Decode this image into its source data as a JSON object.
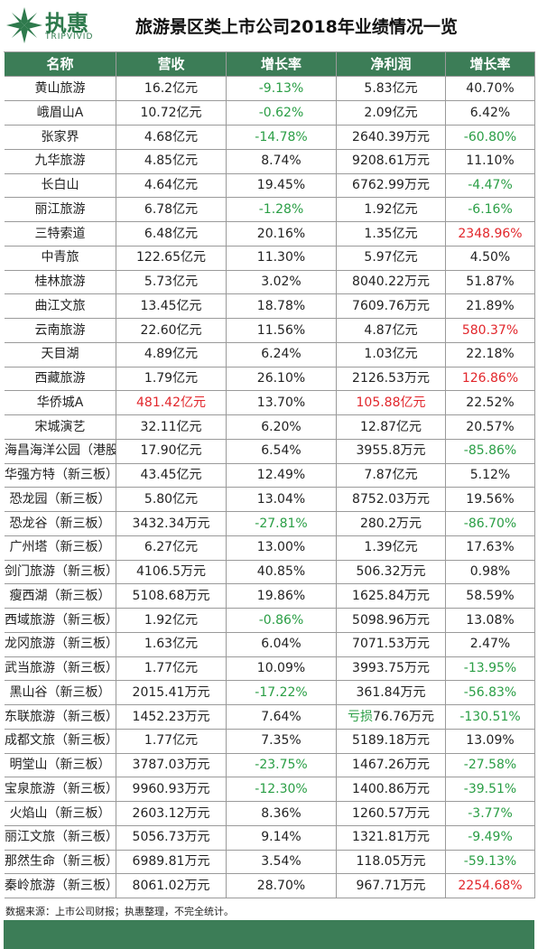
{
  "header": {
    "brand": "执惠",
    "brand_en": "TRIPVIVID",
    "title": "旅游景区类上市公司2018年业绩情况一览"
  },
  "table": {
    "columns": [
      "名称",
      "营收",
      "增长率",
      "净利润",
      "增长率"
    ],
    "rows": [
      [
        "黄山旅游",
        "16.2亿元",
        {
          "text": "-9.13%",
          "color": "#2a9e45"
        },
        "5.83亿元",
        "40.70%"
      ],
      [
        "峨眉山A",
        "10.72亿元",
        {
          "text": "-0.62%",
          "color": "#2a9e45"
        },
        "2.09亿元",
        "6.42%"
      ],
      [
        "张家界",
        "4.68亿元",
        {
          "text": "-14.78%",
          "color": "#2a9e45"
        },
        "2640.39万元",
        {
          "text": "-60.80%",
          "color": "#2a9e45"
        }
      ],
      [
        "九华旅游",
        "4.85亿元",
        "8.74%",
        "9208.61万元",
        "11.10%"
      ],
      [
        "长白山",
        "4.64亿元",
        "19.45%",
        "6762.99万元",
        {
          "text": "-4.47%",
          "color": "#2a9e45"
        }
      ],
      [
        "丽江旅游",
        "6.78亿元",
        {
          "text": "-1.28%",
          "color": "#2a9e45"
        },
        "1.92亿元",
        {
          "text": "-6.16%",
          "color": "#2a9e45"
        }
      ],
      [
        "三特索道",
        "6.48亿元",
        "20.16%",
        "1.35亿元",
        {
          "text": "2348.96%",
          "color": "#e2262b"
        }
      ],
      [
        "中青旅",
        "122.65亿元",
        "11.30%",
        "5.97亿元",
        "4.50%"
      ],
      [
        "桂林旅游",
        "5.73亿元",
        "3.02%",
        "8040.22万元",
        "51.87%"
      ],
      [
        "曲江文旅",
        "13.45亿元",
        "18.78%",
        "7609.76万元",
        "21.89%"
      ],
      [
        "云南旅游",
        "22.60亿元",
        "11.56%",
        "4.87亿元",
        {
          "text": "580.37%",
          "color": "#e2262b"
        }
      ],
      [
        "天目湖",
        "4.89亿元",
        "6.24%",
        "1.03亿元",
        "22.18%"
      ],
      [
        "西藏旅游",
        "1.79亿元",
        "26.10%",
        "2126.53万元",
        {
          "text": "126.86%",
          "color": "#e2262b"
        }
      ],
      [
        "华侨城A",
        {
          "text": "481.42亿元",
          "color": "#e2262b"
        },
        "13.70%",
        {
          "text": "105.88亿元",
          "color": "#e2262b"
        },
        "22.52%"
      ],
      [
        "宋城演艺",
        "32.11亿元",
        "6.20%",
        "12.87亿元",
        "20.57%"
      ],
      [
        "海昌海洋公园（港股）",
        "17.90亿元",
        "6.54%",
        "3955.8万元",
        {
          "text": "-85.86%",
          "color": "#2a9e45"
        }
      ],
      [
        "华强方特（新三板）",
        "43.45亿元",
        "12.49%",
        "7.87亿元",
        "5.12%"
      ],
      [
        "恐龙园（新三板）",
        "5.80亿元",
        "13.04%",
        "8752.03万元",
        "19.56%"
      ],
      [
        "恐龙谷（新三板）",
        "3432.34万元",
        {
          "text": "-27.81%",
          "color": "#2a9e45"
        },
        "280.2万元",
        {
          "text": "-86.70%",
          "color": "#2a9e45"
        }
      ],
      [
        "广州塔（新三板）",
        "6.27亿元",
        "13.00%",
        "1.39亿元",
        "17.63%"
      ],
      [
        "剑门旅游（新三板）",
        "4106.5万元",
        "40.85%",
        "506.32万元",
        "0.98%"
      ],
      [
        "瘦西湖（新三板）",
        "5108.68万元",
        "19.86%",
        "1625.84万元",
        "58.59%"
      ],
      [
        "西域旅游（新三板）",
        "1.92亿元",
        {
          "text": "-0.86%",
          "color": "#2a9e45"
        },
        "5098.96万元",
        "13.08%"
      ],
      [
        "龙冈旅游（新三板）",
        "1.63亿元",
        "6.04%",
        "7071.53万元",
        "2.47%"
      ],
      [
        "武当旅游（新三板）",
        "1.77亿元",
        "10.09%",
        "3993.75万元",
        {
          "text": "-13.95%",
          "color": "#2a9e45"
        }
      ],
      [
        "黑山谷（新三板）",
        "2015.41万元",
        {
          "text": "-17.22%",
          "color": "#2a9e45"
        },
        "361.84万元",
        {
          "text": "-56.83%",
          "color": "#2a9e45"
        }
      ],
      [
        "东联旅游（新三板）",
        "1452.23万元",
        "7.64%",
        {
          "parts": [
            {
              "text": "亏损",
              "color": "#2a9e45"
            },
            {
              "text": "76.76万元"
            }
          ]
        },
        {
          "text": "-130.51%",
          "color": "#2a9e45"
        }
      ],
      [
        "成都文旅（新三板）",
        "1.77亿元",
        "7.35%",
        "5189.18万元",
        "13.09%"
      ],
      [
        "明堂山（新三板）",
        "3787.03万元",
        {
          "text": "-23.75%",
          "color": "#2a9e45"
        },
        "1467.26万元",
        {
          "text": "-27.58%",
          "color": "#2a9e45"
        }
      ],
      [
        "宝泉旅游（新三板）",
        "9960.93万元",
        {
          "text": "-12.30%",
          "color": "#2a9e45"
        },
        "1400.86万元",
        {
          "text": "-39.51%",
          "color": "#2a9e45"
        }
      ],
      [
        "火焰山（新三板）",
        "2603.12万元",
        "8.36%",
        "1260.57万元",
        {
          "text": "-3.77%",
          "color": "#2a9e45"
        }
      ],
      [
        "丽江文旅（新三板）",
        "5056.73万元",
        "9.14%",
        "1321.81万元",
        {
          "text": "-9.49%",
          "color": "#2a9e45"
        }
      ],
      [
        "那然生命（新三板）",
        "6989.81万元",
        "3.54%",
        "118.05万元",
        {
          "text": "-59.13%",
          "color": "#2a9e45"
        }
      ],
      [
        "秦岭旅游（新三板）",
        "8061.02万元",
        "28.70%",
        "967.71万元",
        {
          "text": "2254.68%",
          "color": "#e2262b"
        }
      ]
    ]
  },
  "footer": {
    "note": "数据来源：上市公司财报；执惠整理，不完全统计。"
  }
}
